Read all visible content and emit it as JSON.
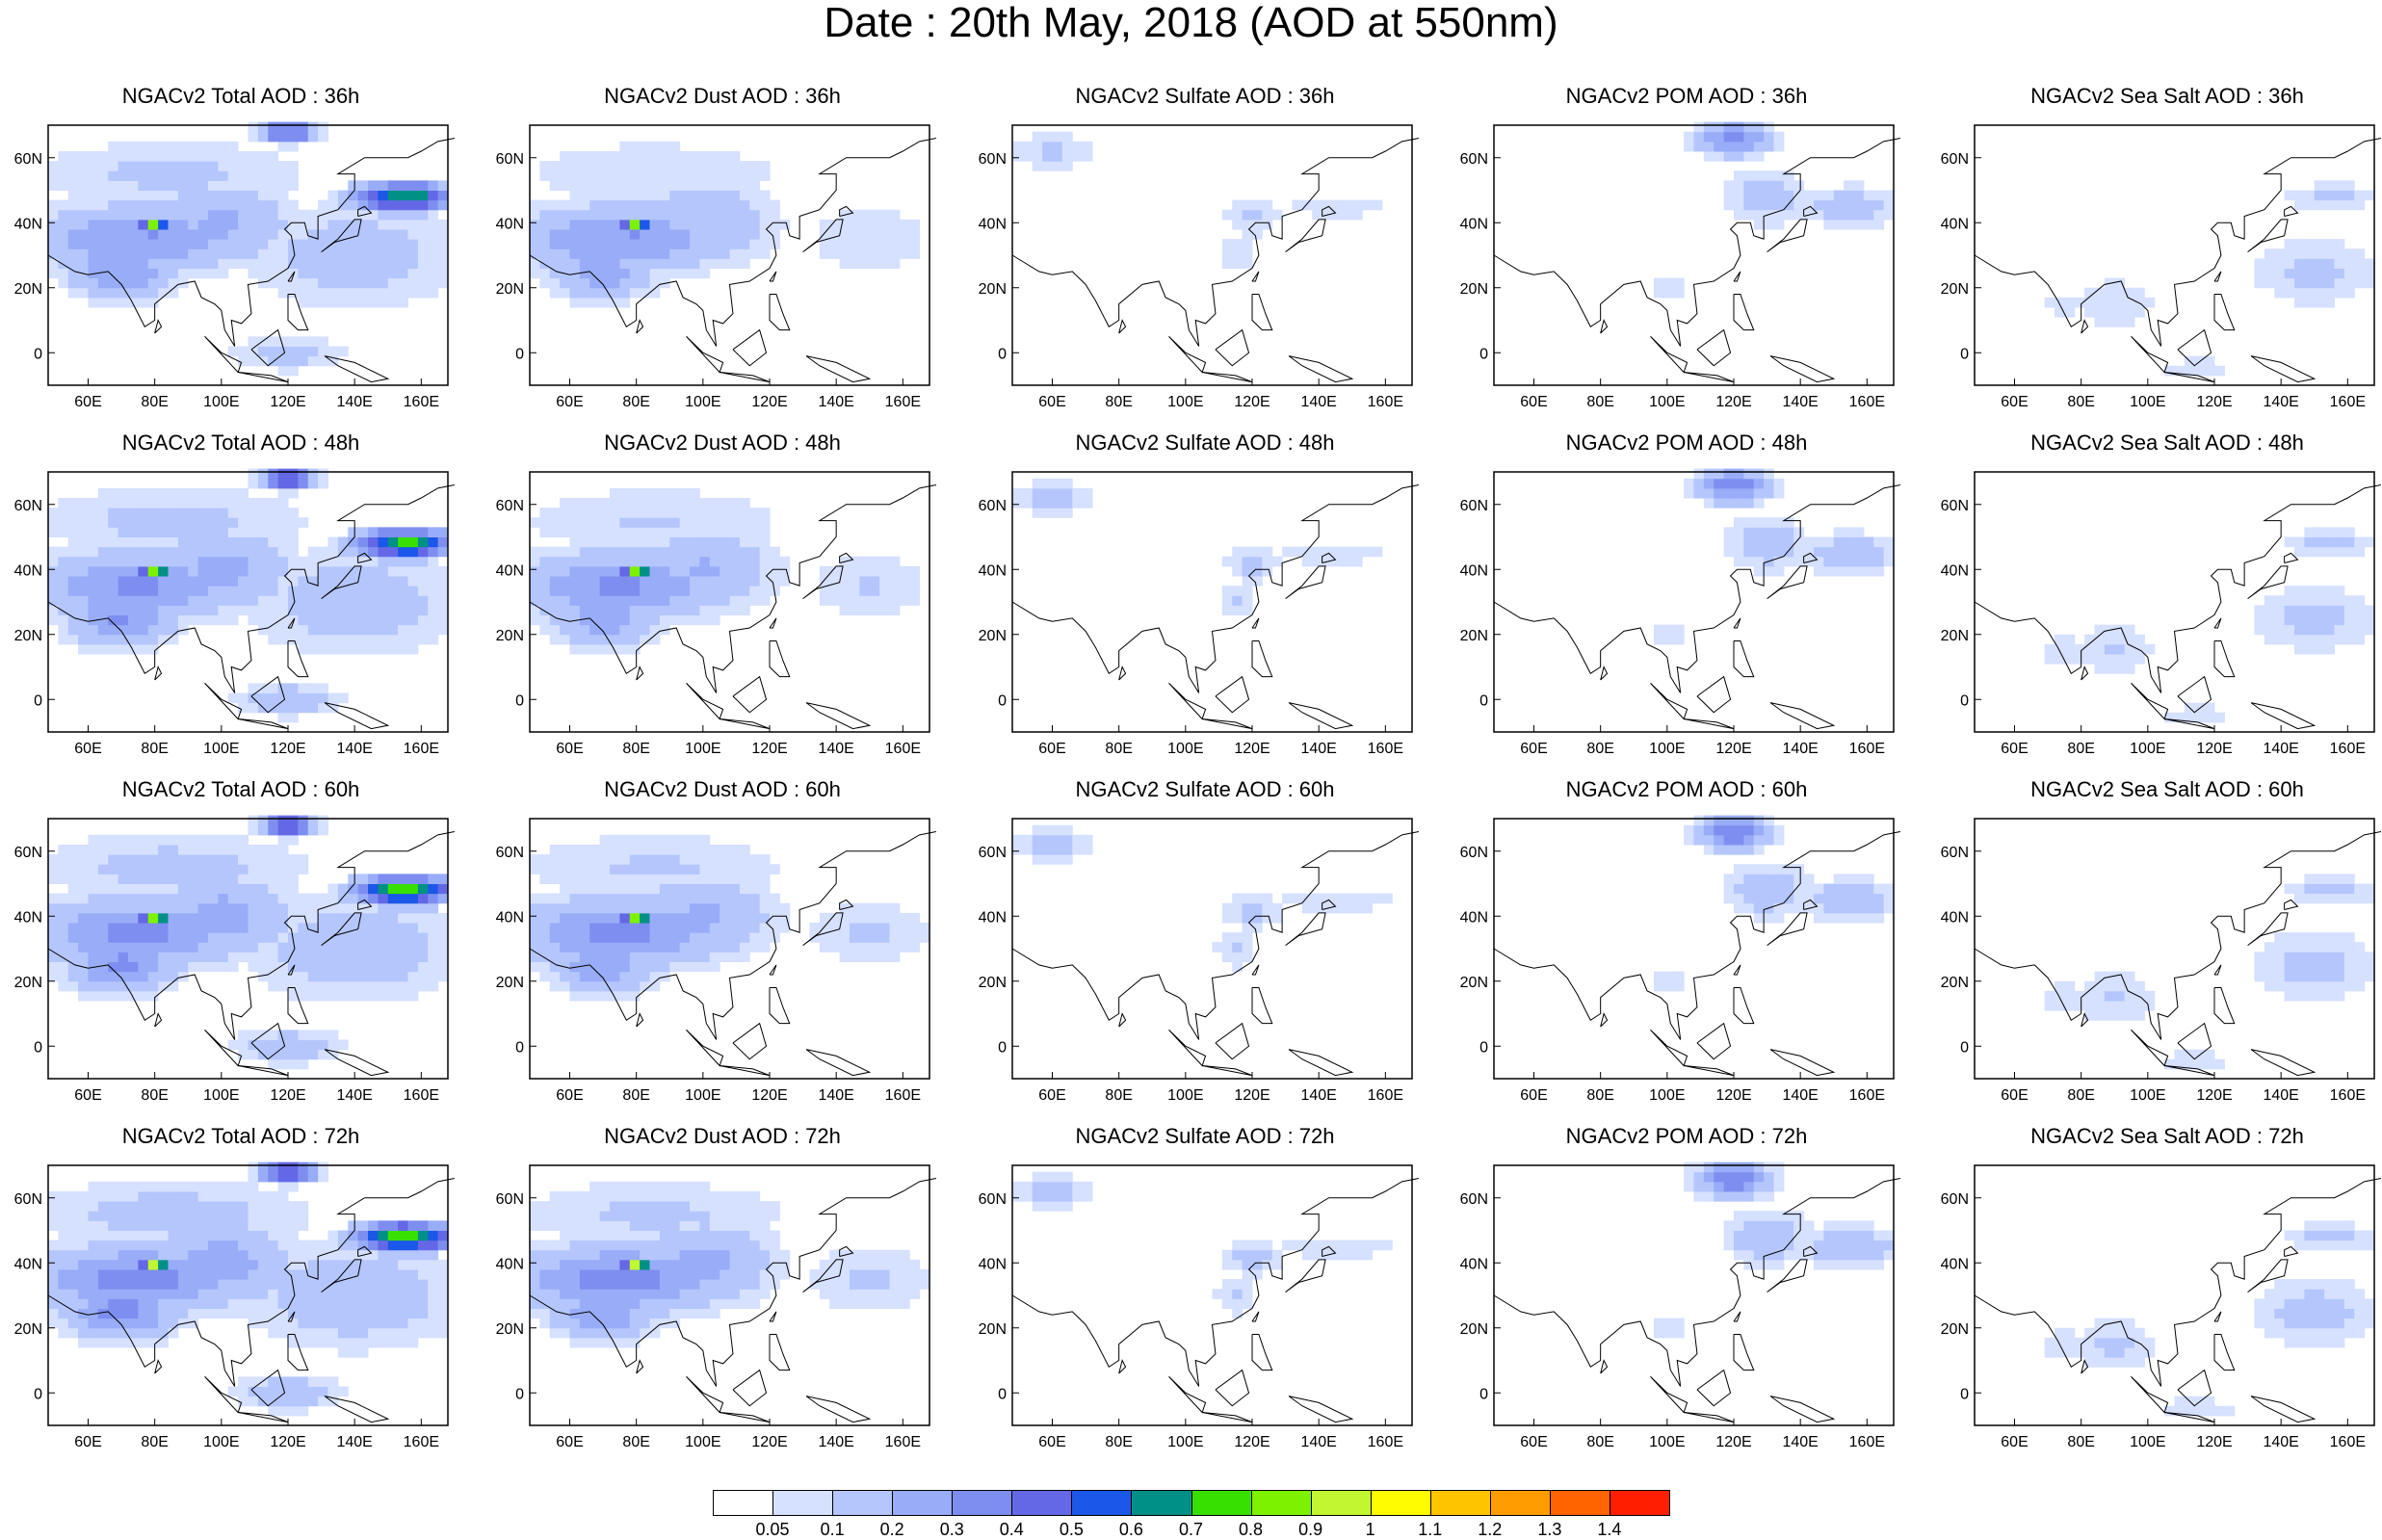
{
  "title": "Date : 20th May, 2018 (AOD at 550nm)",
  "lon_labels": [
    "60E",
    "80E",
    "100E",
    "120E",
    "140E",
    "160E"
  ],
  "lon_values": [
    60,
    80,
    100,
    120,
    140,
    160
  ],
  "lat_labels": [
    "60N",
    "40N",
    "20N",
    "0"
  ],
  "lat_values": [
    60,
    40,
    20,
    0
  ],
  "lon_range": [
    48,
    168
  ],
  "lat_range": [
    -10,
    70
  ],
  "columns": [
    {
      "key": "total",
      "name": "Total"
    },
    {
      "key": "dust",
      "name": "Dust"
    },
    {
      "key": "sulfate",
      "name": "Sulfate"
    },
    {
      "key": "pom",
      "name": "POM"
    },
    {
      "key": "seasalt",
      "name": "Sea Salt"
    }
  ],
  "panel_titles": [
    [
      "NGACv2 Total AOD : 36h",
      "NGACv2 Dust AOD : 36h",
      "NGACv2 Sulfate AOD : 36h",
      "NGACv2 POM AOD : 36h",
      "NGACv2 Sea Salt AOD : 36h"
    ],
    [
      "NGACv2 Total AOD : 48h",
      "NGACv2 Dust AOD : 48h",
      "NGACv2 Sulfate AOD : 48h",
      "NGACv2 POM AOD : 48h",
      "NGACv2 Sea Salt AOD : 48h"
    ],
    [
      "NGACv2 Total AOD : 60h",
      "NGACv2 Dust AOD : 60h",
      "NGACv2 Sulfate AOD : 60h",
      "NGACv2 POM AOD : 60h",
      "NGACv2 Sea Salt AOD : 60h"
    ],
    [
      "NGACv2 Total AOD : 72h",
      "NGACv2 Dust AOD : 72h",
      "NGACv2 Sulfate AOD : 72h",
      "NGACv2 POM AOD : 72h",
      "NGACv2 Sea Salt  AOD : 72h"
    ]
  ],
  "colorbar": {
    "labels": [
      "0.05",
      "0.1",
      "0.2",
      "0.3",
      "0.4",
      "0.5",
      "0.6",
      "0.7",
      "0.8",
      "0.9",
      "1",
      "1.1",
      "1.2",
      "1.3",
      "1.4"
    ],
    "colors": [
      "#ffffff",
      "#d6e0ff",
      "#b4c6fc",
      "#98acf8",
      "#7e8ef0",
      "#6468e6",
      "#1b57e8",
      "#009088",
      "#37e000",
      "#7df200",
      "#c2f630",
      "#fffc00",
      "#ffc400",
      "#ff9c00",
      "#ff6400",
      "#ff1e00"
    ]
  },
  "chart_data": {
    "type": "heatmap",
    "variable": "AOD at 550nm",
    "forecast_hours": [
      "36h",
      "48h",
      "60h",
      "72h"
    ],
    "species": [
      "Total",
      "Dust",
      "Sulfate",
      "POM",
      "Sea Salt"
    ],
    "bins": [
      0.05,
      0.1,
      0.2,
      0.3,
      0.4,
      0.5,
      0.6,
      0.7,
      0.8,
      0.9,
      1,
      1.1,
      1.2,
      1.3,
      1.4
    ],
    "blobs": {
      "total": [
        {
          "lon": 80,
          "lat": 39,
          "rlon": 4,
          "rlat": 2.5,
          "v": 0.85
        },
        {
          "lon": 75,
          "lat": 35,
          "rlon": 30,
          "rlat": 10,
          "v": 0.3
        },
        {
          "lon": 100,
          "lat": 40,
          "rlon": 20,
          "rlat": 12,
          "v": 0.22
        },
        {
          "lon": 70,
          "lat": 25,
          "rlon": 15,
          "rlat": 8,
          "v": 0.3
        },
        {
          "lon": 85,
          "lat": 55,
          "rlon": 40,
          "rlat": 10,
          "v": 0.12
        },
        {
          "lon": 120,
          "lat": 68,
          "rlon": 8,
          "rlat": 3,
          "v": 0.5
        },
        {
          "lon": 155,
          "lat": 48,
          "rlon": 14,
          "rlat": 4,
          "v": 0.7
        },
        {
          "lon": 140,
          "lat": 30,
          "rlon": 30,
          "rlat": 15,
          "v": 0.15
        },
        {
          "lon": 120,
          "lat": 0,
          "rlon": 15,
          "rlat": 5,
          "v": 0.15
        }
      ],
      "dust": [
        {
          "lon": 80,
          "lat": 39,
          "rlon": 4,
          "rlat": 2.5,
          "v": 0.85
        },
        {
          "lon": 75,
          "lat": 35,
          "rlon": 30,
          "rlat": 10,
          "v": 0.3
        },
        {
          "lon": 100,
          "lat": 40,
          "rlon": 20,
          "rlat": 12,
          "v": 0.2
        },
        {
          "lon": 70,
          "lat": 25,
          "rlon": 15,
          "rlat": 8,
          "v": 0.25
        },
        {
          "lon": 85,
          "lat": 55,
          "rlon": 40,
          "rlat": 10,
          "v": 0.1
        },
        {
          "lon": 150,
          "lat": 35,
          "rlon": 18,
          "rlat": 10,
          "v": 0.1
        }
      ],
      "sulfate": [
        {
          "lon": 60,
          "lat": 62,
          "rlon": 12,
          "rlat": 5,
          "v": 0.12
        },
        {
          "lon": 120,
          "lat": 42,
          "rlon": 8,
          "rlat": 6,
          "v": 0.12
        },
        {
          "lon": 145,
          "lat": 45,
          "rlon": 20,
          "rlat": 4,
          "v": 0.08
        },
        {
          "lon": 115,
          "lat": 30,
          "rlon": 6,
          "rlat": 6,
          "v": 0.1
        }
      ],
      "pom": [
        {
          "lon": 120,
          "lat": 66,
          "rlon": 10,
          "rlat": 5,
          "v": 0.35
        },
        {
          "lon": 130,
          "lat": 48,
          "rlon": 12,
          "rlat": 8,
          "v": 0.15
        },
        {
          "lon": 155,
          "lat": 45,
          "rlon": 15,
          "rlat": 6,
          "v": 0.15
        },
        {
          "lon": 100,
          "lat": 20,
          "rlon": 6,
          "rlat": 5,
          "v": 0.08
        }
      ],
      "seasalt": [
        {
          "lon": 150,
          "lat": 25,
          "rlon": 18,
          "rlat": 10,
          "v": 0.12
        },
        {
          "lon": 155,
          "lat": 48,
          "rlon": 14,
          "rlat": 4,
          "v": 0.12
        },
        {
          "lon": 90,
          "lat": 15,
          "rlon": 12,
          "rlat": 8,
          "v": 0.1
        },
        {
          "lon": 75,
          "lat": 15,
          "rlon": 8,
          "rlat": 5,
          "v": 0.08
        },
        {
          "lon": 115,
          "lat": -5,
          "rlon": 12,
          "rlat": 4,
          "v": 0.08
        }
      ]
    },
    "coastline_rough": [
      [
        [
          48,
          30
        ],
        [
          56,
          25
        ],
        [
          60,
          24
        ],
        [
          66,
          25
        ],
        [
          70,
          21
        ],
        [
          73,
          16
        ],
        [
          77,
          8
        ],
        [
          80,
          10
        ],
        [
          80,
          15
        ],
        [
          87,
          21
        ],
        [
          92,
          22
        ],
        [
          94,
          17
        ],
        [
          98,
          15
        ],
        [
          100,
          13
        ],
        [
          101,
          7
        ],
        [
          104,
          2
        ],
        [
          103,
          10
        ],
        [
          106,
          9
        ],
        [
          109,
          12
        ],
        [
          108,
          21
        ],
        [
          114,
          22
        ],
        [
          120,
          26
        ],
        [
          122,
          30
        ],
        [
          121,
          36
        ],
        [
          119,
          38
        ],
        [
          121,
          40
        ],
        [
          125,
          40
        ],
        [
          126,
          36
        ],
        [
          129,
          35
        ],
        [
          129,
          42
        ],
        [
          135,
          44
        ],
        [
          140,
          50
        ],
        [
          140,
          55
        ],
        [
          135,
          55
        ],
        [
          143,
          60
        ],
        [
          156,
          60
        ],
        [
          160,
          62
        ],
        [
          165,
          65
        ],
        [
          170,
          66
        ]
      ],
      [
        [
          130,
          31
        ],
        [
          134,
          34
        ],
        [
          141,
          36
        ],
        [
          142,
          41
        ],
        [
          140,
          41
        ],
        [
          135,
          35
        ],
        [
          130,
          31
        ]
      ],
      [
        [
          141,
          42
        ],
        [
          145,
          43
        ],
        [
          143,
          45
        ],
        [
          141,
          44
        ],
        [
          141,
          42
        ]
      ],
      [
        [
          120,
          18
        ],
        [
          122,
          18
        ],
        [
          124,
          12
        ],
        [
          126,
          7
        ],
        [
          123,
          7
        ],
        [
          120,
          10
        ],
        [
          120,
          18
        ]
      ],
      [
        [
          95,
          5
        ],
        [
          105,
          -6
        ],
        [
          106,
          -3
        ],
        [
          100,
          0
        ],
        [
          95,
          5
        ]
      ],
      [
        [
          105,
          -6
        ],
        [
          115,
          -8
        ],
        [
          120,
          -9
        ],
        [
          115,
          -7
        ],
        [
          105,
          -6
        ]
      ],
      [
        [
          109,
          1
        ],
        [
          117,
          7
        ],
        [
          119,
          0
        ],
        [
          114,
          -4
        ],
        [
          109,
          1
        ]
      ],
      [
        [
          131,
          -1
        ],
        [
          140,
          -3
        ],
        [
          150,
          -8
        ],
        [
          145,
          -9
        ],
        [
          135,
          -4
        ],
        [
          131,
          -1
        ]
      ],
      [
        [
          120,
          22
        ],
        [
          122,
          25
        ],
        [
          121,
          22
        ],
        [
          120,
          22
        ]
      ],
      [
        [
          80,
          6
        ],
        [
          82,
          8
        ],
        [
          81,
          10
        ],
        [
          80,
          6
        ]
      ]
    ]
  }
}
